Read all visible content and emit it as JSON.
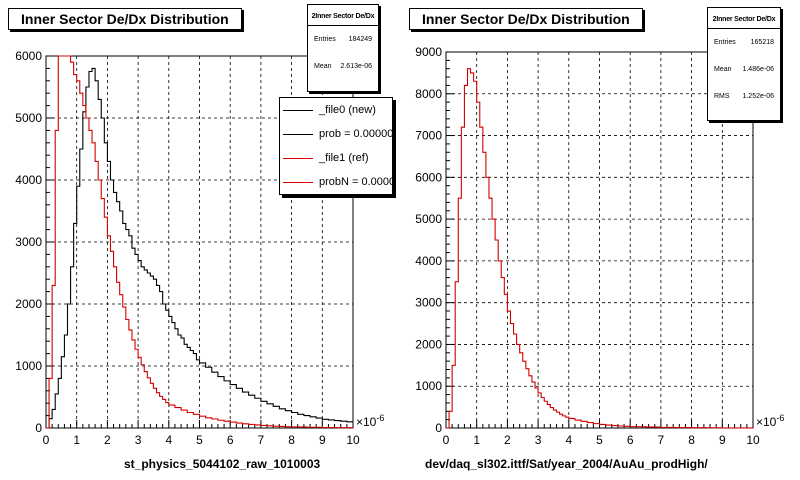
{
  "footer_text": "",
  "chart_data": [
    {
      "type": "histogram",
      "title": "Inner Sector De/Dx Distribution",
      "xlabel": "st_physics_5044102_raw_1010003",
      "x_exponent": "×10^-6",
      "xlim": [
        0,
        10
      ],
      "ylim": [
        0,
        6000
      ],
      "x_ticks": [
        0,
        1,
        2,
        3,
        4,
        5,
        6,
        7,
        8,
        9,
        10
      ],
      "y_ticks": [
        0,
        1000,
        2000,
        3000,
        4000,
        5000,
        6000
      ],
      "grid": true,
      "stats": {
        "name": "2Inner Sector De/Dx",
        "rows": [
          {
            "label": "Entries",
            "value": "184249"
          },
          {
            "label": "Mean",
            "value": "2.613e-06"
          }
        ]
      },
      "legend": {
        "position": "top-right",
        "entries": [
          {
            "label": "_file0 (new)",
            "color": "#000000"
          },
          {
            "label": "prob = 0.000000",
            "color": "#000000"
          },
          {
            "label": "_file1 (ref)",
            "color": "#d40000"
          },
          {
            "label": "probN = 0.000000",
            "color": "#d40000"
          }
        ]
      },
      "series": [
        {
          "name": "_file0 (new)",
          "color": "#000000",
          "points": [
            [
              0,
              0
            ],
            [
              0.1,
              150
            ],
            [
              0.2,
              300
            ],
            [
              0.3,
              550
            ],
            [
              0.4,
              800
            ],
            [
              0.5,
              1150
            ],
            [
              0.6,
              1500
            ],
            [
              0.7,
              2000
            ],
            [
              0.8,
              2600
            ],
            [
              0.9,
              3300
            ],
            [
              1.0,
              3900
            ],
            [
              1.1,
              4500
            ],
            [
              1.2,
              5100
            ],
            [
              1.3,
              5500
            ],
            [
              1.4,
              5750
            ],
            [
              1.5,
              5800
            ],
            [
              1.6,
              5600
            ],
            [
              1.7,
              5300
            ],
            [
              1.8,
              5000
            ],
            [
              1.9,
              4600
            ],
            [
              2.0,
              4300
            ],
            [
              2.1,
              4000
            ],
            [
              2.2,
              3800
            ],
            [
              2.3,
              3650
            ],
            [
              2.4,
              3500
            ],
            [
              2.5,
              3300
            ],
            [
              2.6,
              3200
            ],
            [
              2.7,
              3100
            ],
            [
              2.8,
              2900
            ],
            [
              2.9,
              2800
            ],
            [
              3.0,
              2700
            ],
            [
              3.1,
              2600
            ],
            [
              3.2,
              2550
            ],
            [
              3.3,
              2500
            ],
            [
              3.4,
              2450
            ],
            [
              3.5,
              2400
            ],
            [
              3.6,
              2300
            ],
            [
              3.7,
              2200
            ],
            [
              3.8,
              2000
            ],
            [
              3.9,
              1900
            ],
            [
              4.0,
              1800
            ],
            [
              4.1,
              1700
            ],
            [
              4.2,
              1600
            ],
            [
              4.3,
              1500
            ],
            [
              4.4,
              1450
            ],
            [
              4.5,
              1350
            ],
            [
              4.6,
              1300
            ],
            [
              4.7,
              1250
            ],
            [
              4.8,
              1200
            ],
            [
              4.9,
              1100
            ],
            [
              5.0,
              1050
            ],
            [
              5.2,
              980
            ],
            [
              5.4,
              900
            ],
            [
              5.6,
              830
            ],
            [
              5.8,
              760
            ],
            [
              6.0,
              700
            ],
            [
              6.2,
              640
            ],
            [
              6.4,
              580
            ],
            [
              6.6,
              530
            ],
            [
              6.8,
              480
            ],
            [
              7.0,
              430
            ],
            [
              7.2,
              390
            ],
            [
              7.4,
              350
            ],
            [
              7.6,
              310
            ],
            [
              7.8,
              280
            ],
            [
              8.0,
              250
            ],
            [
              8.2,
              220
            ],
            [
              8.4,
              200
            ],
            [
              8.6,
              180
            ],
            [
              8.8,
              160
            ],
            [
              9.0,
              140
            ],
            [
              9.2,
              130
            ],
            [
              9.4,
              120
            ],
            [
              9.6,
              110
            ],
            [
              9.8,
              100
            ],
            [
              10.0,
              100
            ]
          ]
        },
        {
          "name": "_file1 (ref)",
          "color": "#d40000",
          "points": [
            [
              0,
              0
            ],
            [
              0.1,
              800
            ],
            [
              0.2,
              2300
            ],
            [
              0.3,
              4800
            ],
            [
              0.4,
              6000
            ],
            [
              0.5,
              6000
            ],
            [
              0.6,
              6000
            ],
            [
              0.7,
              6000
            ],
            [
              0.8,
              5900
            ],
            [
              0.9,
              5700
            ],
            [
              1.0,
              5600
            ],
            [
              1.1,
              5400
            ],
            [
              1.2,
              5200
            ],
            [
              1.3,
              5000
            ],
            [
              1.4,
              4800
            ],
            [
              1.5,
              4600
            ],
            [
              1.6,
              4300
            ],
            [
              1.7,
              4000
            ],
            [
              1.8,
              3700
            ],
            [
              1.9,
              3400
            ],
            [
              2.0,
              3100
            ],
            [
              2.1,
              2850
            ],
            [
              2.2,
              2600
            ],
            [
              2.3,
              2350
            ],
            [
              2.4,
              2150
            ],
            [
              2.5,
              1950
            ],
            [
              2.6,
              1750
            ],
            [
              2.7,
              1580
            ],
            [
              2.8,
              1420
            ],
            [
              2.9,
              1270
            ],
            [
              3.0,
              1140
            ],
            [
              3.1,
              1020
            ],
            [
              3.2,
              910
            ],
            [
              3.3,
              810
            ],
            [
              3.4,
              720
            ],
            [
              3.5,
              640
            ],
            [
              3.6,
              570
            ],
            [
              3.7,
              510
            ],
            [
              3.8,
              460
            ],
            [
              3.9,
              410
            ],
            [
              4.0,
              370
            ],
            [
              4.2,
              330
            ],
            [
              4.4,
              290
            ],
            [
              4.6,
              250
            ],
            [
              4.8,
              220
            ],
            [
              5.0,
              190
            ],
            [
              5.2,
              165
            ],
            [
              5.4,
              145
            ],
            [
              5.6,
              125
            ],
            [
              5.8,
              110
            ],
            [
              6.0,
              95
            ],
            [
              6.2,
              80
            ],
            [
              6.4,
              68
            ],
            [
              6.6,
              58
            ],
            [
              6.8,
              50
            ],
            [
              7.0,
              42
            ],
            [
              7.2,
              36
            ],
            [
              7.4,
              30
            ],
            [
              7.6,
              25
            ],
            [
              7.8,
              21
            ],
            [
              8.0,
              18
            ],
            [
              8.5,
              12
            ],
            [
              9.0,
              8
            ],
            [
              9.5,
              5
            ],
            [
              10.0,
              3
            ]
          ]
        }
      ]
    },
    {
      "type": "histogram",
      "title": "Inner Sector De/Dx Distribution",
      "xlabel": "dev/daq_sl302.ittf/Sat/year_2004/AuAu_prodHigh/",
      "x_exponent": "×10^-6",
      "xlim": [
        0,
        10
      ],
      "ylim": [
        0,
        9000
      ],
      "x_ticks": [
        0,
        1,
        2,
        3,
        4,
        5,
        6,
        7,
        8,
        9,
        10
      ],
      "y_ticks": [
        0,
        1000,
        2000,
        3000,
        4000,
        5000,
        6000,
        7000,
        8000,
        9000
      ],
      "grid": true,
      "stats": {
        "name": "2Inner Sector De/Dx",
        "rows": [
          {
            "label": "Entries",
            "value": "165218"
          },
          {
            "label": "Mean",
            "value": "1.486e-06"
          },
          {
            "label": "RMS",
            "value": "1.252e-06"
          }
        ]
      },
      "series": [
        {
          "name": "",
          "color": "#d40000",
          "points": [
            [
              0,
              0
            ],
            [
              0.1,
              400
            ],
            [
              0.2,
              1500
            ],
            [
              0.3,
              3500
            ],
            [
              0.4,
              5500
            ],
            [
              0.5,
              7200
            ],
            [
              0.6,
              8200
            ],
            [
              0.7,
              8600
            ],
            [
              0.8,
              8500
            ],
            [
              0.9,
              8300
            ],
            [
              1.0,
              7800
            ],
            [
              1.1,
              7200
            ],
            [
              1.2,
              6600
            ],
            [
              1.3,
              6000
            ],
            [
              1.4,
              5500
            ],
            [
              1.5,
              5000
            ],
            [
              1.6,
              4500
            ],
            [
              1.7,
              4000
            ],
            [
              1.8,
              3600
            ],
            [
              1.9,
              3200
            ],
            [
              2.0,
              2800
            ],
            [
              2.1,
              2500
            ],
            [
              2.2,
              2250
            ],
            [
              2.3,
              2000
            ],
            [
              2.4,
              1800
            ],
            [
              2.5,
              1600
            ],
            [
              2.6,
              1420
            ],
            [
              2.7,
              1250
            ],
            [
              2.8,
              1100
            ],
            [
              2.9,
              960
            ],
            [
              3.0,
              840
            ],
            [
              3.1,
              730
            ],
            [
              3.2,
              640
            ],
            [
              3.3,
              560
            ],
            [
              3.4,
              490
            ],
            [
              3.5,
              430
            ],
            [
              3.6,
              380
            ],
            [
              3.7,
              330
            ],
            [
              3.8,
              290
            ],
            [
              3.9,
              260
            ],
            [
              4.0,
              230
            ],
            [
              4.2,
              190
            ],
            [
              4.4,
              160
            ],
            [
              4.6,
              130
            ],
            [
              4.8,
              105
            ],
            [
              5.0,
              85
            ],
            [
              5.2,
              70
            ],
            [
              5.4,
              58
            ],
            [
              5.6,
              48
            ],
            [
              5.8,
              40
            ],
            [
              6.0,
              33
            ],
            [
              6.5,
              22
            ],
            [
              7.0,
              15
            ],
            [
              7.5,
              10
            ],
            [
              8.0,
              7
            ],
            [
              8.5,
              5
            ],
            [
              9.0,
              3
            ],
            [
              9.5,
              2
            ],
            [
              10.0,
              1
            ]
          ]
        }
      ]
    }
  ]
}
